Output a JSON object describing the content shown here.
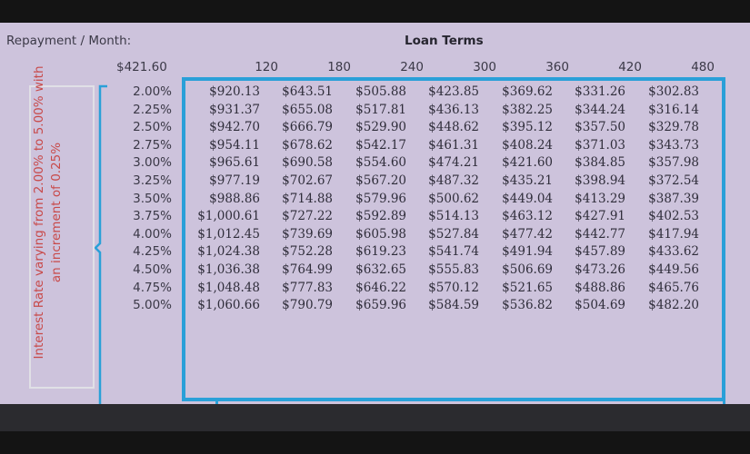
{
  "sheet": {
    "repayment_label": "Repayment / Month:",
    "base_value": "$421.60",
    "terms_title": "Loan Terms",
    "side_note": "Interest Rate varying from 2.00% to 5.00% with an increment of 0.25%",
    "colors": {
      "background": "#cdc3dc",
      "box_border": "#2aa0d8",
      "note_text": "#c84a4a"
    }
  },
  "terms": [
    "120",
    "180",
    "240",
    "300",
    "360",
    "420",
    "480"
  ],
  "rows": [
    {
      "rate": "2.00%",
      "values": [
        "$920.13",
        "$643.51",
        "$505.88",
        "$423.85",
        "$369.62",
        "$331.26",
        "$302.83"
      ]
    },
    {
      "rate": "2.25%",
      "values": [
        "$931.37",
        "$655.08",
        "$517.81",
        "$436.13",
        "$382.25",
        "$344.24",
        "$316.14"
      ]
    },
    {
      "rate": "2.50%",
      "values": [
        "$942.70",
        "$666.79",
        "$529.90",
        "$448.62",
        "$395.12",
        "$357.50",
        "$329.78"
      ]
    },
    {
      "rate": "2.75%",
      "values": [
        "$954.11",
        "$678.62",
        "$542.17",
        "$461.31",
        "$408.24",
        "$371.03",
        "$343.73"
      ]
    },
    {
      "rate": "3.00%",
      "values": [
        "$965.61",
        "$690.58",
        "$554.60",
        "$474.21",
        "$421.60",
        "$384.85",
        "$357.98"
      ]
    },
    {
      "rate": "3.25%",
      "values": [
        "$977.19",
        "$702.67",
        "$567.20",
        "$487.32",
        "$435.21",
        "$398.94",
        "$372.54"
      ]
    },
    {
      "rate": "3.50%",
      "values": [
        "$988.86",
        "$714.88",
        "$579.96",
        "$500.62",
        "$449.04",
        "$413.29",
        "$387.39"
      ]
    },
    {
      "rate": "3.75%",
      "values": [
        "$1,000.61",
        "$727.22",
        "$592.89",
        "$514.13",
        "$463.12",
        "$427.91",
        "$402.53"
      ]
    },
    {
      "rate": "4.00%",
      "values": [
        "$1,012.45",
        "$739.69",
        "$605.98",
        "$527.84",
        "$477.42",
        "$442.77",
        "$417.94"
      ]
    },
    {
      "rate": "4.25%",
      "values": [
        "$1,024.38",
        "$752.28",
        "$619.23",
        "$541.74",
        "$491.94",
        "$457.89",
        "$433.62"
      ]
    },
    {
      "rate": "4.50%",
      "values": [
        "$1,036.38",
        "$764.99",
        "$632.65",
        "$555.83",
        "$506.69",
        "$473.26",
        "$449.56"
      ]
    },
    {
      "rate": "4.75%",
      "values": [
        "$1,048.48",
        "$777.83",
        "$646.22",
        "$570.12",
        "$521.65",
        "$488.86",
        "$465.76"
      ]
    },
    {
      "rate": "5.00%",
      "values": [
        "$1,060.66",
        "$790.79",
        "$659.96",
        "$584.59",
        "$536.82",
        "$504.69",
        "$482.20"
      ]
    }
  ]
}
